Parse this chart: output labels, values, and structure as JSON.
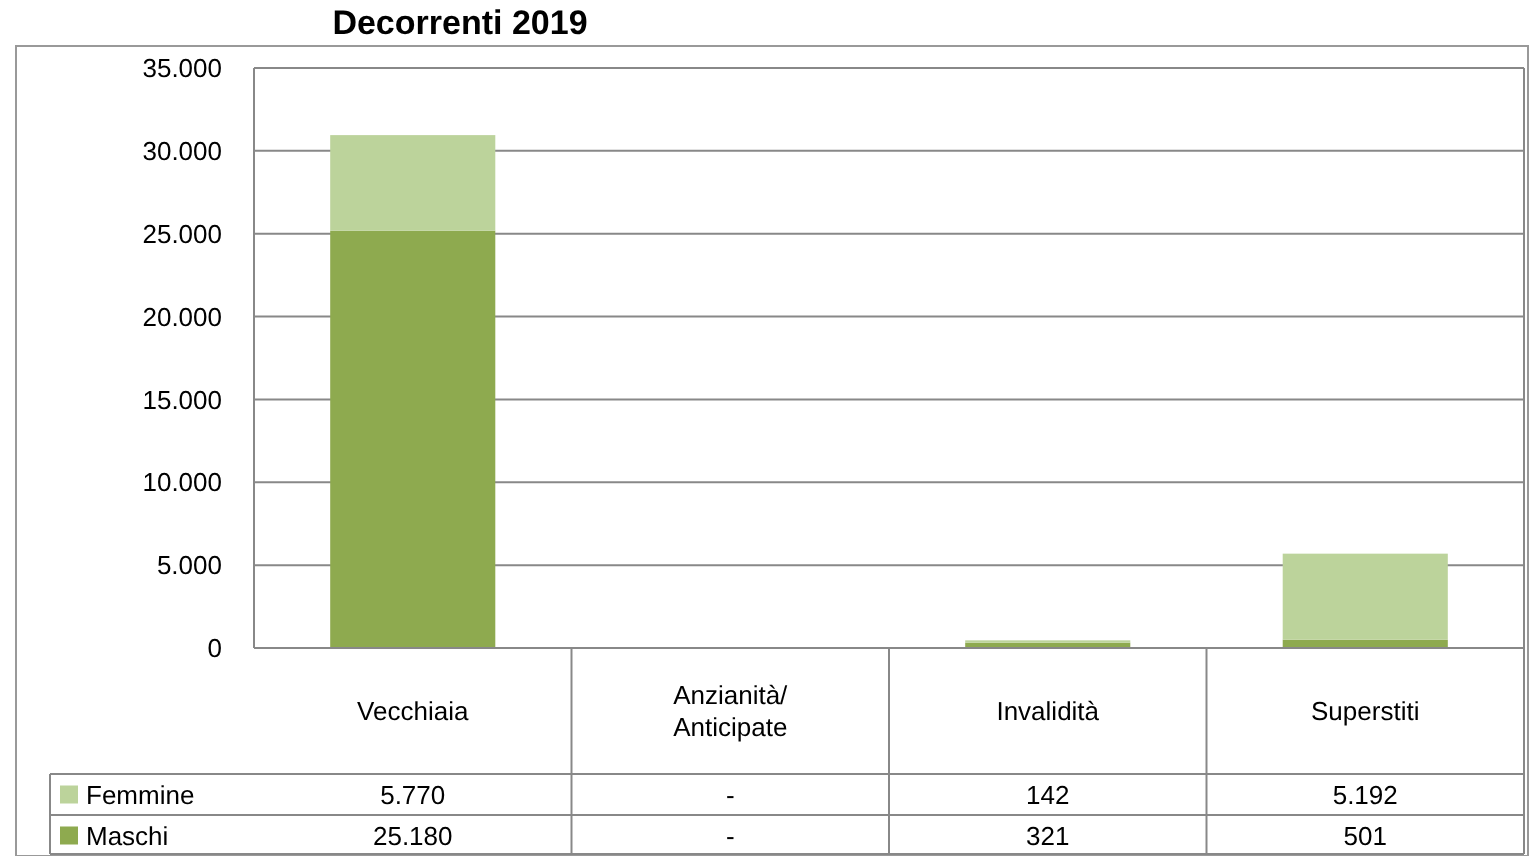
{
  "chart_data": {
    "type": "bar",
    "title": "Decorrenti 2019",
    "stacked": true,
    "categories": [
      "Vecchiaia",
      "Anzianità/\nAnticipate",
      "Invalidità",
      "Superstiti"
    ],
    "series": [
      {
        "name": "Maschi",
        "color": "#8eaa4f",
        "values": [
          25180,
          null,
          321,
          501
        ],
        "value_labels": [
          "25.180",
          "-",
          "321",
          "501"
        ]
      },
      {
        "name": "Femmine",
        "color": "#bcd39b",
        "values": [
          5770,
          null,
          142,
          5192
        ],
        "value_labels": [
          "5.770",
          "-",
          "142",
          "5.192"
        ]
      }
    ],
    "ylim": [
      0,
      35000
    ],
    "yticks": [
      {
        "value": 0,
        "label": "0"
      },
      {
        "value": 5000,
        "label": "5.000"
      },
      {
        "value": 10000,
        "label": "10.000"
      },
      {
        "value": 15000,
        "label": "15.000"
      },
      {
        "value": 20000,
        "label": "20.000"
      },
      {
        "value": 25000,
        "label": "25.000"
      },
      {
        "value": 30000,
        "label": "30.000"
      },
      {
        "value": 35000,
        "label": "35.000"
      }
    ],
    "grid": "y",
    "legend": "bottom"
  }
}
